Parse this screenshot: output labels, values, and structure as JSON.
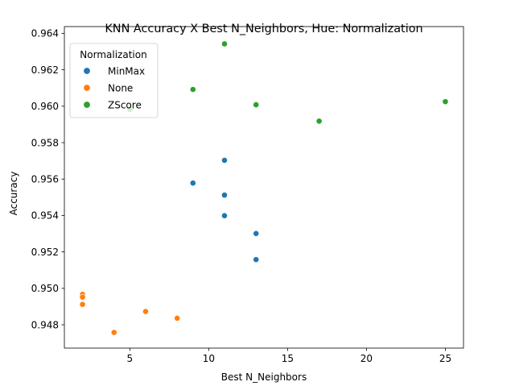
{
  "chart_data": {
    "type": "scatter",
    "title": "KNN Accuracy X Best N_Neighbors, Hue: Normalization",
    "xlabel": "Best N_Neighbors",
    "ylabel": "Accuracy",
    "xlim": [
      0.85,
      26.15
    ],
    "ylim": [
      0.94672,
      0.96437
    ],
    "xticks": [
      5,
      10,
      15,
      20,
      25
    ],
    "xtick_labels": [
      "5",
      "10",
      "15",
      "20",
      "25"
    ],
    "yticks": [
      0.948,
      0.95,
      0.952,
      0.954,
      0.956,
      0.958,
      0.96,
      0.962,
      0.964
    ],
    "ytick_labels": [
      "0.948",
      "0.950",
      "0.952",
      "0.954",
      "0.956",
      "0.958",
      "0.960",
      "0.962",
      "0.964"
    ],
    "grid": false,
    "legend": {
      "title": "Normalization",
      "placement": "top-left"
    },
    "series": [
      {
        "name": "MinMax",
        "color": "#1f77b4",
        "points": [
          [
            9,
            0.95578
          ],
          [
            11,
            0.95703
          ],
          [
            11,
            0.95512
          ],
          [
            11,
            0.95399
          ],
          [
            13,
            0.95301
          ],
          [
            13,
            0.95158
          ]
        ]
      },
      {
        "name": "None",
        "color": "#ff7f0e",
        "points": [
          [
            2,
            0.94967
          ],
          [
            2,
            0.94952
          ],
          [
            2,
            0.94912
          ],
          [
            4,
            0.94758
          ],
          [
            6,
            0.94873
          ],
          [
            8,
            0.94836
          ]
        ]
      },
      {
        "name": "ZScore",
        "color": "#2ca02c",
        "points": [
          [
            5,
            0.95982
          ],
          [
            9,
            0.96092
          ],
          [
            11,
            0.96342
          ],
          [
            13,
            0.96008
          ],
          [
            17,
            0.95918
          ],
          [
            25,
            0.96025
          ]
        ]
      }
    ]
  }
}
